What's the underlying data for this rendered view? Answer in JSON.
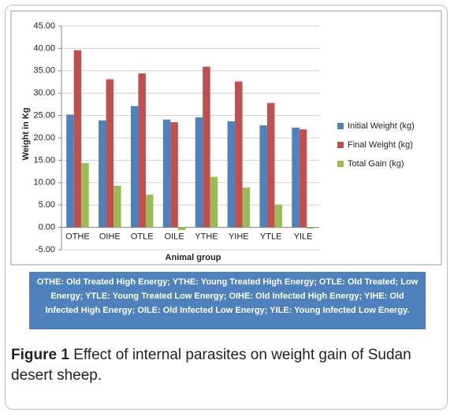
{
  "chart_data": {
    "type": "bar",
    "categories": [
      "OTHE",
      "OIHE",
      "OTLE",
      "OILE",
      "YTHE",
      "YIHE",
      "YTLE",
      "YILE"
    ],
    "series": [
      {
        "name": "Initial Weight (kg)",
        "color": "#4f81bd",
        "values": [
          25.2,
          23.9,
          27.1,
          24.1,
          24.6,
          23.7,
          22.8,
          22.3
        ]
      },
      {
        "name": "Final Weight (kg)",
        "color": "#c0504d",
        "values": [
          39.6,
          33.1,
          34.4,
          23.5,
          35.9,
          32.6,
          27.8,
          21.9
        ]
      },
      {
        "name": "Total Gain (kg)",
        "color": "#9bbb59",
        "values": [
          14.4,
          9.3,
          7.3,
          -0.6,
          11.3,
          8.9,
          5.1,
          -0.3
        ]
      }
    ],
    "ylabel": "Weight in Kg",
    "xlabel": "Animal group",
    "ylim": [
      -5,
      45
    ],
    "yticks": [
      {
        "value": -5,
        "label": "-5.00"
      },
      {
        "value": 0,
        "label": "0.00"
      },
      {
        "value": 5,
        "label": "5.00"
      },
      {
        "value": 10,
        "label": "10.00"
      },
      {
        "value": 15,
        "label": "15.00"
      },
      {
        "value": 20,
        "label": "20.00"
      },
      {
        "value": 25,
        "label": "25.00"
      },
      {
        "value": 30,
        "label": "30.00"
      },
      {
        "value": 35,
        "label": "35.00"
      },
      {
        "value": 40,
        "label": "40.00"
      },
      {
        "value": 45,
        "label": "45.00"
      }
    ],
    "grid": true,
    "legend": "right"
  },
  "footnote": "OTHE: Old Treated High Energy; YTHE: Young Treated High Energy; OTLE: Old Treated; Low Energy; YTLE: Young Treated Low Energy; OIHE: Old Infected High Energy; YIHE: Old Infected High Energy; OILE: Old Infected Low Energy; YILE: Young Infected Low Energy.",
  "caption": {
    "label": "Figure 1",
    "text": "Effect of internal parasites on weight gain of Sudan desert sheep."
  }
}
